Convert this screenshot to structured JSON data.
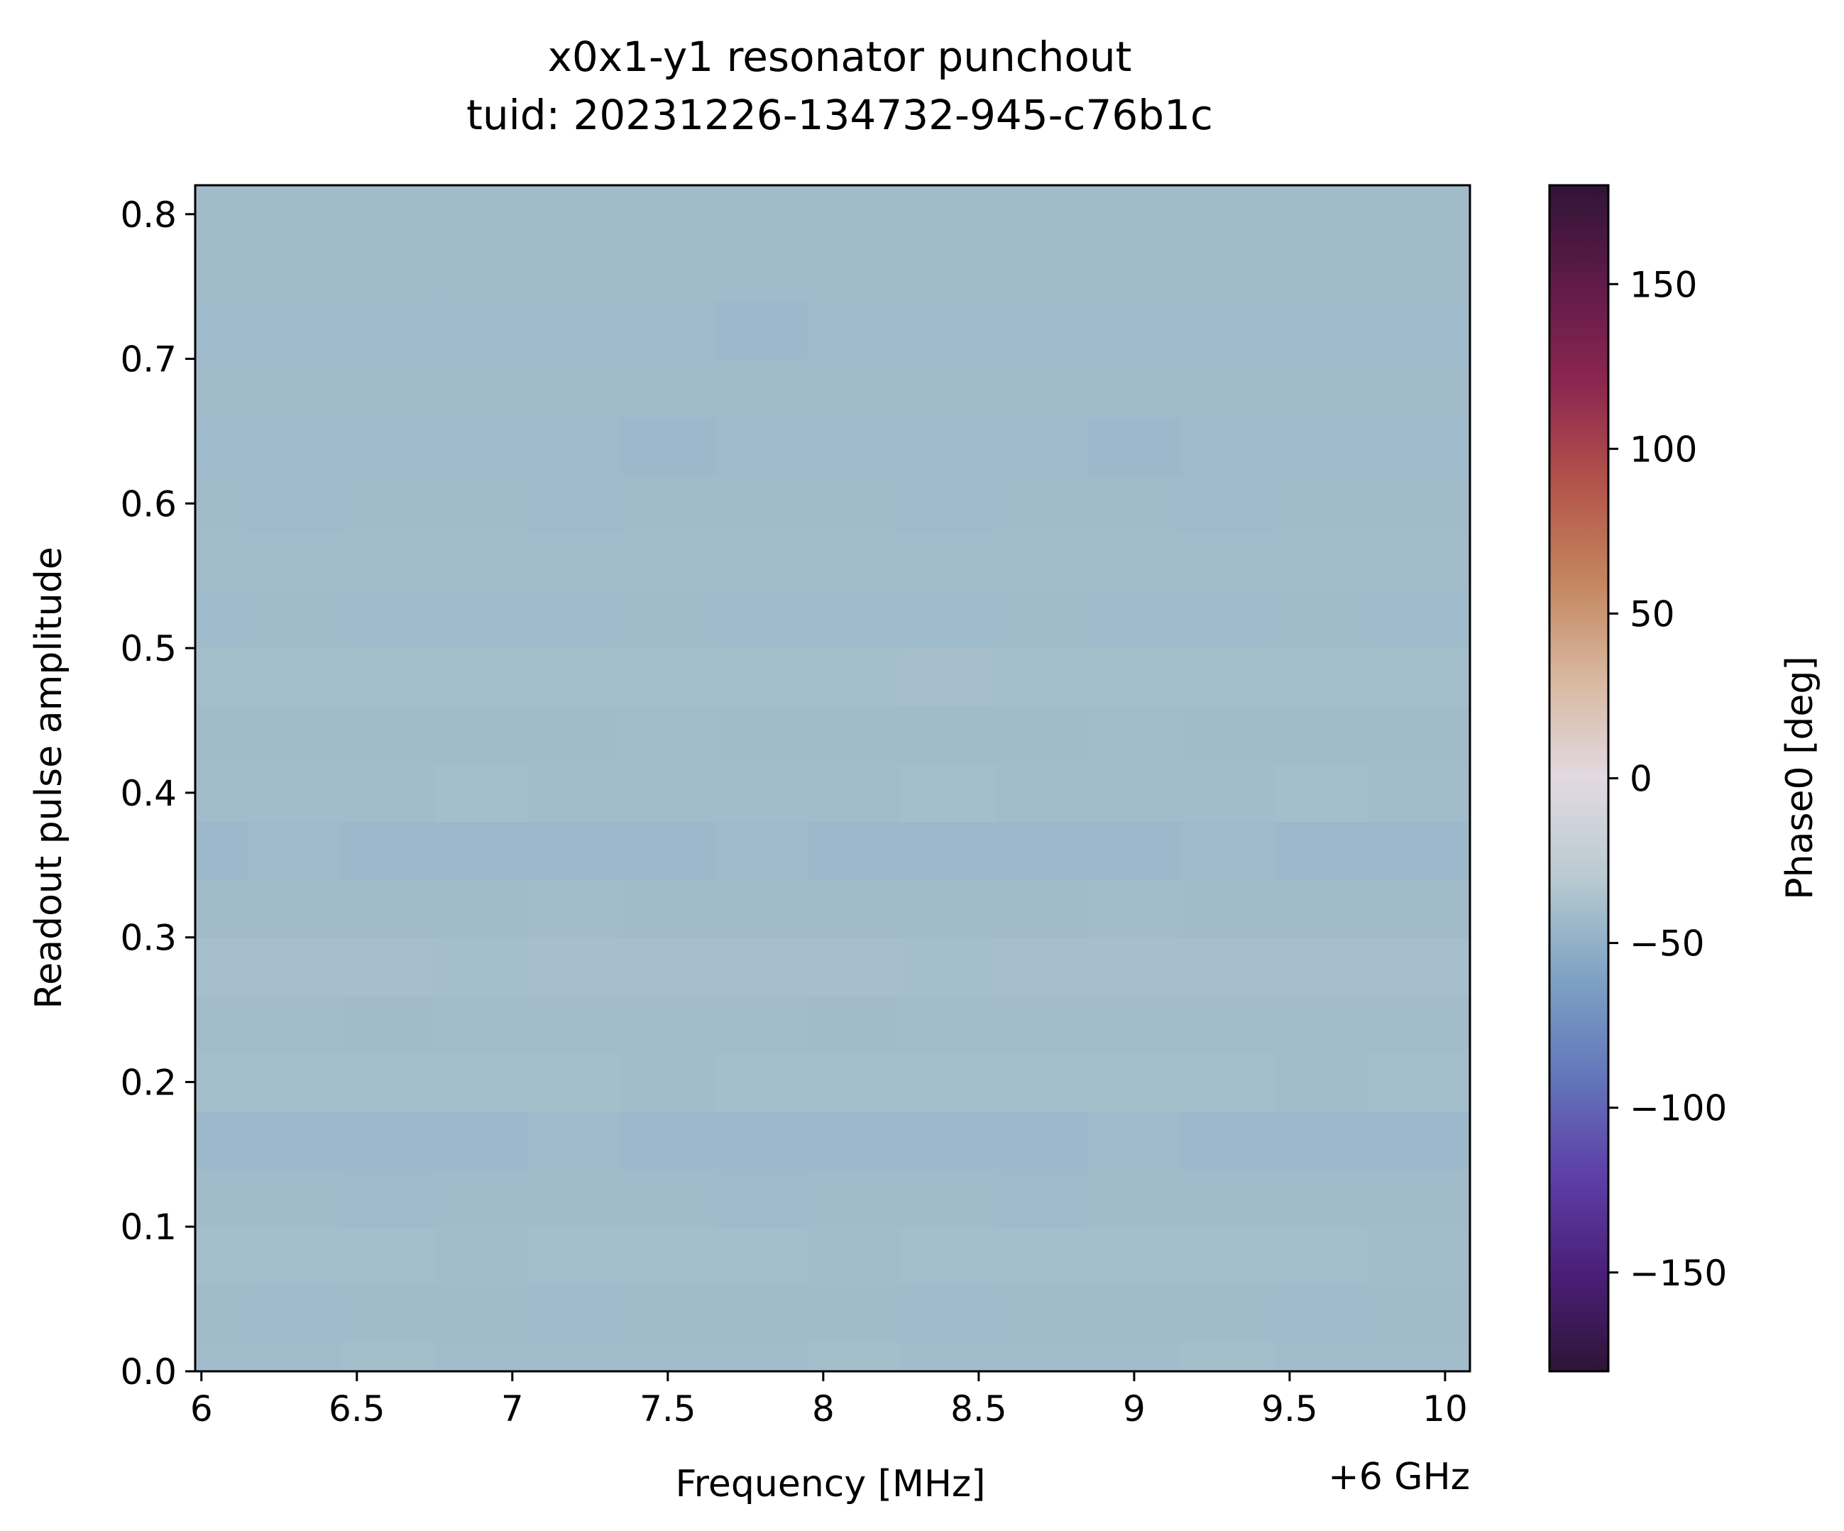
{
  "chart_data": {
    "type": "heatmap",
    "title": "x0x1-y1 resonator punchout",
    "subtitle": "tuid: 20231226-134732-945-c76b1c",
    "xlabel": "Frequency [MHz]",
    "x_offset_label": "+6 GHz",
    "ylabel": "Readout pulse amplitude",
    "colorbar_label": "Phase0 [deg]",
    "colormap": "twilight_shifted",
    "xlim": [
      5.98,
      10.08
    ],
    "ylim": [
      0.0,
      0.82
    ],
    "clim": [
      -180,
      180
    ],
    "x_ticks": [
      6,
      6.5,
      7,
      7.5,
      8,
      8.5,
      9,
      9.5,
      10
    ],
    "x_tick_labels": [
      "6",
      "6.5",
      "7",
      "7.5",
      "8",
      "8.5",
      "9",
      "9.5",
      "10"
    ],
    "y_ticks": [
      0.0,
      0.1,
      0.2,
      0.3,
      0.4,
      0.5,
      0.6,
      0.7,
      0.8
    ],
    "y_tick_labels": [
      "0.0",
      "0.1",
      "0.2",
      "0.3",
      "0.4",
      "0.5",
      "0.6",
      "0.7",
      "0.8"
    ],
    "colorbar_ticks": [
      150,
      100,
      50,
      0,
      -50,
      -100,
      -150
    ],
    "colorbar_tick_labels": [
      "150",
      "100",
      "50",
      "0",
      "−50",
      "−100",
      "−150"
    ],
    "colormap_stops": [
      {
        "value": -180,
        "color": "#2f1436"
      },
      {
        "value": -150,
        "color": "#4b1f79"
      },
      {
        "value": -120,
        "color": "#5e40a8"
      },
      {
        "value": -90,
        "color": "#6377bb"
      },
      {
        "value": -60,
        "color": "#7ea3c4"
      },
      {
        "value": -30,
        "color": "#b8cbd0"
      },
      {
        "value": 0,
        "color": "#e2d9e2"
      },
      {
        "value": 30,
        "color": "#d8b8a0"
      },
      {
        "value": 60,
        "color": "#c4855e"
      },
      {
        "value": 90,
        "color": "#b2534a"
      },
      {
        "value": 120,
        "color": "#8c2650"
      },
      {
        "value": 150,
        "color": "#601a4a"
      },
      {
        "value": 180,
        "color": "#2f1436"
      }
    ],
    "amplitude_rows": [
      0.0,
      0.04,
      0.08,
      0.12,
      0.16,
      0.2,
      0.24,
      0.28,
      0.32,
      0.36,
      0.4,
      0.44,
      0.48,
      0.52,
      0.56,
      0.6,
      0.64,
      0.68,
      0.72,
      0.76,
      0.8
    ],
    "frequency_columns": [
      6.0,
      6.3,
      6.6,
      6.9,
      7.2,
      7.5,
      7.8,
      8.1,
      8.4,
      8.7,
      9.0,
      9.3,
      9.6,
      9.9
    ],
    "phase_rows_deg": [
      [
        -41,
        -41,
        -40,
        -41,
        -41,
        -41,
        -41,
        -40,
        -41,
        -41,
        -41,
        -40,
        -41,
        -41
      ],
      [
        -42,
        -43,
        -42,
        -42,
        -43,
        -42,
        -42,
        -42,
        -43,
        -42,
        -42,
        -42,
        -43,
        -42
      ],
      [
        -40,
        -40,
        -40,
        -41,
        -40,
        -40,
        -40,
        -41,
        -40,
        -40,
        -40,
        -40,
        -40,
        -41
      ],
      [
        -42,
        -42,
        -43,
        -42,
        -42,
        -42,
        -43,
        -42,
        -42,
        -43,
        -42,
        -42,
        -42,
        -42
      ],
      [
        -44,
        -44,
        -44,
        -44,
        -43,
        -44,
        -44,
        -44,
        -44,
        -44,
        -43,
        -44,
        -44,
        -44
      ],
      [
        -40,
        -40,
        -40,
        -40,
        -40,
        -41,
        -40,
        -40,
        -40,
        -40,
        -40,
        -40,
        -41,
        -40
      ],
      [
        -41,
        -41,
        -42,
        -41,
        -41,
        -41,
        -41,
        -42,
        -41,
        -41,
        -41,
        -41,
        -41,
        -41
      ],
      [
        -39,
        -39,
        -39,
        -40,
        -39,
        -39,
        -39,
        -39,
        -40,
        -39,
        -39,
        -39,
        -39,
        -39
      ],
      [
        -42,
        -42,
        -42,
        -42,
        -41,
        -42,
        -42,
        -42,
        -42,
        -42,
        -41,
        -42,
        -42,
        -42
      ],
      [
        -44,
        -43,
        -44,
        -44,
        -44,
        -44,
        -43,
        -44,
        -44,
        -44,
        -44,
        -43,
        -44,
        -44
      ],
      [
        -41,
        -41,
        -41,
        -40,
        -41,
        -41,
        -41,
        -41,
        -40,
        -41,
        -41,
        -41,
        -40,
        -41
      ],
      [
        -42,
        -42,
        -42,
        -42,
        -42,
        -41,
        -42,
        -42,
        -42,
        -42,
        -41,
        -42,
        -42,
        -42
      ],
      [
        -40,
        -40,
        -40,
        -40,
        -40,
        -40,
        -40,
        -40,
        -39,
        -40,
        -40,
        -40,
        -40,
        -40
      ],
      [
        -43,
        -42,
        -43,
        -43,
        -43,
        -42,
        -43,
        -43,
        -43,
        -42,
        -43,
        -43,
        -42,
        -43
      ],
      [
        -41,
        -41,
        -41,
        -41,
        -41,
        -41,
        -41,
        -41,
        -41,
        -41,
        -41,
        -41,
        -41,
        -41
      ],
      [
        -42,
        -43,
        -42,
        -42,
        -43,
        -42,
        -42,
        -42,
        -43,
        -42,
        -42,
        -43,
        -42,
        -42
      ],
      [
        -43,
        -43,
        -43,
        -43,
        -43,
        -44,
        -43,
        -43,
        -43,
        -43,
        -44,
        -43,
        -43,
        -43
      ],
      [
        -42,
        -42,
        -42,
        -42,
        -42,
        -42,
        -42,
        -42,
        -42,
        -42,
        -42,
        -42,
        -42,
        -42
      ],
      [
        -43,
        -43,
        -43,
        -43,
        -43,
        -43,
        -44,
        -43,
        -43,
        -43,
        -43,
        -43,
        -43,
        -43
      ],
      [
        -42,
        -42,
        -42,
        -42,
        -42,
        -42,
        -42,
        -42,
        -42,
        -42,
        -42,
        -42,
        -42,
        -42
      ],
      [
        -42,
        -42,
        -42,
        -42,
        -42,
        -42,
        -42,
        -42,
        -42,
        -42,
        -42,
        -42,
        -42,
        -42
      ]
    ]
  }
}
